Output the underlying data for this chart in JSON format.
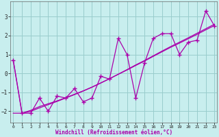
{
  "xlabel": "Windchill (Refroidissement éolien,°C)",
  "bg_color": "#c8eeee",
  "line_color": "#aa00aa",
  "grid_color": "#99cccc",
  "x_data": [
    0,
    1,
    2,
    3,
    4,
    5,
    6,
    7,
    8,
    9,
    10,
    11,
    12,
    13,
    14,
    15,
    16,
    17,
    18,
    19,
    20,
    21,
    22,
    23
  ],
  "y_scatter": [
    0.7,
    -2.1,
    -2.1,
    -1.3,
    -2.0,
    -1.2,
    -1.3,
    -0.8,
    -1.5,
    -1.3,
    -0.15,
    -0.3,
    1.85,
    1.0,
    -1.3,
    0.55,
    1.85,
    2.1,
    2.1,
    1.0,
    1.65,
    1.75,
    3.3,
    2.5
  ],
  "y_line1": [
    -2.1,
    -2.1,
    -1.95,
    -1.75,
    -1.6,
    -1.45,
    -1.28,
    -1.1,
    -0.92,
    -0.72,
    -0.5,
    -0.28,
    -0.05,
    0.18,
    0.42,
    0.65,
    0.9,
    1.14,
    1.38,
    1.6,
    1.83,
    2.06,
    2.3,
    2.53
  ],
  "y_line2": [
    0.7,
    -2.1,
    -2.0,
    -1.82,
    -1.65,
    -1.48,
    -1.3,
    -1.12,
    -0.93,
    -0.73,
    -0.51,
    -0.28,
    -0.04,
    0.2,
    0.45,
    0.68,
    0.93,
    1.18,
    1.42,
    1.65,
    1.88,
    2.12,
    2.36,
    2.6
  ],
  "xlim": [
    -0.3,
    23.3
  ],
  "ylim": [
    -2.6,
    3.8
  ],
  "yticks": [
    -2,
    -1,
    0,
    1,
    2,
    3
  ],
  "xticks": [
    0,
    1,
    2,
    3,
    4,
    5,
    6,
    7,
    8,
    9,
    10,
    11,
    12,
    13,
    14,
    15,
    16,
    17,
    18,
    19,
    20,
    21,
    22,
    23
  ]
}
